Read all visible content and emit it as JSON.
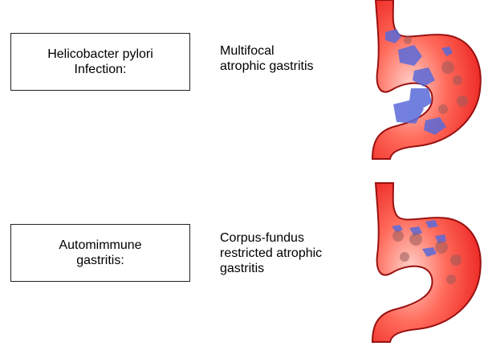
{
  "rows": [
    {
      "label": "Helicobacter pylori\nInfection:",
      "description": "Multifocal\natrophic gastritis",
      "illustration": "stomach-multifocal-atrophy"
    },
    {
      "label": "Automimmune\ngastritis:",
      "description": "Corpus-fundus\nrestricted atrophic\ngastritis",
      "illustration": "stomach-corpus-fundus-atrophy"
    }
  ],
  "colors": {
    "stomach_fill": "#f02a2a",
    "stomach_light": "#ffc8c0",
    "stomach_outline": "#9a1010",
    "atrophy_patch": "#5a6ad8",
    "inflammation": "#9a5a5a"
  }
}
